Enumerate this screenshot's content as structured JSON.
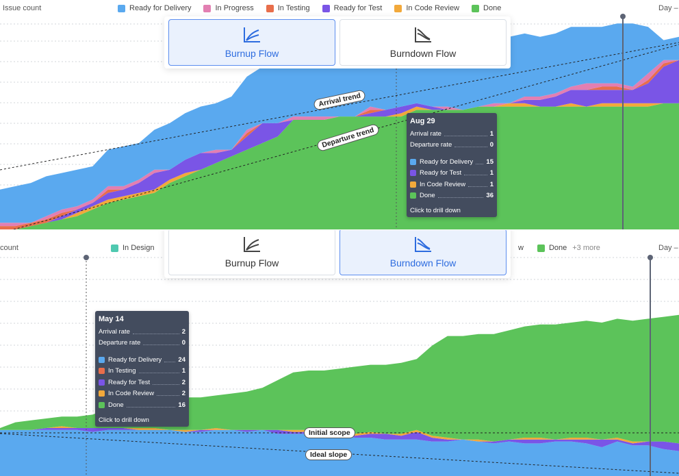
{
  "colors": {
    "ready_for_delivery": "#5aa9ef",
    "in_progress": "#e27fb2",
    "in_testing": "#e86e4b",
    "ready_for_test": "#7a55e6",
    "in_code_review": "#f2a93b",
    "done": "#5cc35a",
    "in_design": "#4fc9b0"
  },
  "toggle": {
    "burnup_label": "Burnup Flow",
    "burndown_label": "Burndown Flow"
  },
  "top": {
    "ylabel": "Issue count",
    "day_label": "Day –",
    "legend": [
      {
        "name": "Ready for Delivery",
        "color": "#5aa9ef"
      },
      {
        "name": "In Progress",
        "color": "#e27fb2"
      },
      {
        "name": "In Testing",
        "color": "#e86e4b"
      },
      {
        "name": "Ready for Test",
        "color": "#7a55e6"
      },
      {
        "name": "In Code Review",
        "color": "#f2a93b"
      },
      {
        "name": "Done",
        "color": "#5cc35a"
      }
    ],
    "arrival_trend_label": "Arrival trend",
    "departure_trend_label": "Departure trend",
    "tooltip": {
      "date": "Aug 29",
      "arrival_rate_label": "Arrival rate",
      "arrival_rate": "1",
      "departure_rate_label": "Departure rate",
      "departure_rate": "0",
      "rows": [
        {
          "name": "Ready for Delivery",
          "value": "15",
          "color": "#5aa9ef"
        },
        {
          "name": "Ready for Test",
          "value": "1",
          "color": "#7a55e6"
        },
        {
          "name": "In Code Review",
          "value": "1",
          "color": "#f2a93b"
        },
        {
          "name": "Done",
          "value": "36",
          "color": "#5cc35a"
        }
      ],
      "footer": "Click to drill down"
    }
  },
  "bottom": {
    "ylabel": "count",
    "day_label": "Day –",
    "legend_left": [
      {
        "name": "In Design",
        "color": "#4fc9b0"
      }
    ],
    "legend_right_partial": "w",
    "legend_right": [
      {
        "name": "Done",
        "color": "#5cc35a"
      }
    ],
    "more_label": "+3 more",
    "initial_scope_label": "Initial scope",
    "ideal_slope_label": "Ideal slope",
    "tooltip": {
      "date": "May 14",
      "arrival_rate_label": "Arrival rate",
      "arrival_rate": "2",
      "departure_rate_label": "Departure rate",
      "departure_rate": "0",
      "rows": [
        {
          "name": "Ready for Delivery",
          "value": "24",
          "color": "#5aa9ef"
        },
        {
          "name": "In Testing",
          "value": "1",
          "color": "#e86e4b"
        },
        {
          "name": "Ready for Test",
          "value": "2",
          "color": "#7a55e6"
        },
        {
          "name": "In Code Review",
          "value": "2",
          "color": "#f2a93b"
        },
        {
          "name": "Done",
          "value": "16",
          "color": "#5cc35a"
        }
      ],
      "footer": "Click to drill down"
    }
  },
  "chart_data": [
    {
      "type": "area",
      "series": [
        {
          "name": "Done",
          "values": [
            0,
            0,
            1,
            2,
            3,
            4,
            6,
            8,
            9,
            10,
            11,
            14,
            16,
            18,
            20,
            22,
            24,
            26,
            28,
            33,
            33,
            33,
            34,
            34,
            34,
            34,
            34,
            36,
            36,
            36,
            36,
            37,
            37,
            37,
            37,
            37,
            37,
            37,
            37,
            37,
            37,
            37,
            37,
            38,
            38
          ]
        },
        {
          "name": "In Code Review",
          "values": [
            0,
            0,
            0,
            0,
            0,
            1,
            1,
            1,
            1,
            1,
            1,
            1,
            1,
            0,
            0,
            0,
            0,
            0,
            0,
            0,
            0,
            0,
            0,
            0,
            0,
            0,
            1,
            1,
            0,
            0,
            0,
            0,
            0,
            1,
            1,
            0,
            0,
            1,
            0,
            1,
            1,
            1,
            1,
            0,
            0
          ]
        },
        {
          "name": "Ready for Test",
          "values": [
            0,
            0,
            0,
            0,
            1,
            1,
            1,
            2,
            2,
            3,
            5,
            3,
            4,
            5,
            3,
            2,
            4,
            6,
            4,
            0,
            0,
            0,
            0,
            0,
            1,
            2,
            2,
            1,
            1,
            0,
            0,
            0,
            0,
            0,
            1,
            2,
            3,
            4,
            5,
            4,
            4,
            4,
            6,
            11,
            13
          ]
        },
        {
          "name": "In Testing",
          "values": [
            1,
            1,
            1,
            1,
            1,
            0,
            0,
            1,
            0,
            0,
            0,
            0,
            0,
            0,
            0,
            0,
            1,
            0,
            0,
            0,
            0,
            0,
            0,
            0,
            1,
            0,
            0,
            0,
            0,
            0,
            0,
            0,
            0,
            0,
            0,
            0,
            0,
            0,
            0,
            1,
            1,
            0,
            1,
            1,
            0
          ]
        },
        {
          "name": "In Progress",
          "values": [
            1,
            1,
            0,
            1,
            1,
            1,
            1,
            1,
            1,
            1,
            1,
            0,
            0,
            0,
            1,
            0,
            1,
            0,
            0,
            1,
            1,
            1,
            0,
            0,
            1,
            0,
            0,
            0,
            0,
            1,
            0,
            0,
            1,
            0,
            1,
            1,
            1,
            1,
            2,
            1,
            1,
            1,
            2,
            1,
            0
          ]
        },
        {
          "name": "Ready for Delivery",
          "values": [
            10,
            11,
            12,
            12,
            11,
            11,
            10,
            11,
            12,
            11,
            12,
            14,
            14,
            14,
            14,
            16,
            16,
            17,
            19,
            21,
            20,
            21,
            21,
            22,
            21,
            22,
            20,
            15,
            19,
            21,
            23,
            22,
            21,
            20,
            19,
            18,
            18,
            18,
            17,
            17,
            18,
            19,
            14,
            6,
            7
          ]
        }
      ]
    },
    {
      "type": "area",
      "series": [
        {
          "name": "Ready for Delivery",
          "values": [
            24,
            24,
            24,
            24,
            24,
            24,
            23,
            24,
            24,
            24,
            24,
            24,
            23,
            23,
            24,
            24,
            23,
            24,
            22,
            22,
            22,
            22,
            21,
            20,
            20,
            19,
            19,
            19,
            18,
            18,
            19,
            18,
            17,
            18,
            17,
            17,
            18,
            18,
            17,
            15,
            18,
            16,
            16,
            14,
            13
          ]
        },
        {
          "name": "Ready for Test",
          "values": [
            0,
            0,
            0,
            1,
            1,
            1,
            2,
            1,
            1,
            0,
            0,
            0,
            0,
            1,
            0,
            0,
            1,
            0,
            2,
            1,
            1,
            1,
            2,
            1,
            2,
            3,
            2,
            4,
            2,
            1,
            0,
            0,
            1,
            1,
            2,
            2,
            1,
            1,
            2,
            4,
            1,
            1,
            2,
            4,
            4
          ]
        },
        {
          "name": "In Testing",
          "values": [
            0,
            0,
            0,
            0,
            0,
            0,
            0,
            0,
            0,
            0,
            0,
            0,
            0,
            0,
            0,
            0,
            0,
            0,
            0,
            0,
            0,
            0,
            0,
            0,
            0,
            0,
            0,
            0,
            0,
            0,
            0,
            0,
            0,
            0,
            0,
            0,
            0,
            0,
            0,
            0,
            0,
            0,
            0,
            0,
            0
          ]
        },
        {
          "name": "In Code Review",
          "values": [
            0,
            0,
            0,
            0,
            1,
            0,
            0,
            0,
            0,
            1,
            1,
            0,
            1,
            0,
            1,
            0,
            0,
            0,
            0,
            1,
            1,
            1,
            1,
            1,
            1,
            0,
            1,
            1,
            1,
            1,
            0,
            1,
            0,
            0,
            1,
            1,
            0,
            1,
            1,
            0,
            1,
            1,
            0,
            0,
            0
          ]
        },
        {
          "name": "In Progress",
          "values": [
            0,
            0,
            0,
            0,
            0,
            0,
            0,
            0,
            0,
            0,
            0,
            0,
            0,
            0,
            0,
            0,
            0,
            0,
            0,
            0,
            0,
            0,
            0,
            0,
            0,
            0,
            0,
            0,
            0,
            0,
            0,
            0,
            0,
            0,
            0,
            0,
            0,
            0,
            0,
            0,
            0,
            0,
            0,
            0,
            0
          ]
        },
        {
          "name": "Done",
          "values": [
            1,
            4,
            5,
            5,
            5,
            6,
            7,
            10,
            13,
            14,
            14,
            16,
            17,
            17,
            17,
            19,
            20,
            22,
            26,
            30,
            31,
            31,
            32,
            35,
            35,
            36,
            37,
            37,
            47,
            53,
            54,
            55,
            56,
            57,
            58,
            59,
            60,
            60,
            61,
            61,
            62,
            63,
            64,
            65,
            67
          ]
        }
      ]
    }
  ]
}
